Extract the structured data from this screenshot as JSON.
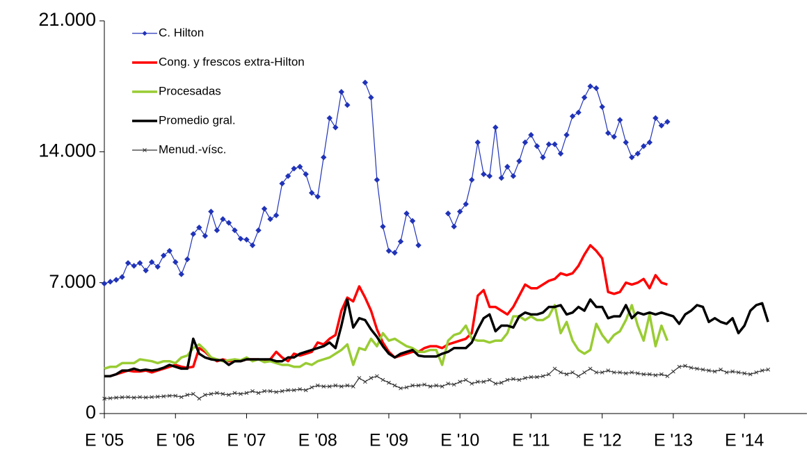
{
  "chart_data": {
    "type": "line",
    "categories": [
      "E '05",
      null,
      null,
      null,
      null,
      null,
      null,
      null,
      null,
      null,
      null,
      null,
      "E '06",
      null,
      null,
      null,
      null,
      null,
      null,
      null,
      null,
      null,
      null,
      null,
      "E '07",
      null,
      null,
      null,
      null,
      null,
      null,
      null,
      null,
      null,
      null,
      null,
      "E '08",
      null,
      null,
      null,
      null,
      null,
      null,
      null,
      null,
      null,
      null,
      null,
      "E '09",
      null,
      null,
      null,
      null,
      null,
      null,
      null,
      null,
      null,
      null,
      null,
      "E '10",
      null,
      null,
      null,
      null,
      null,
      null,
      null,
      null,
      null,
      null,
      null,
      "E '11",
      null,
      null,
      null,
      null,
      null,
      null,
      null,
      null,
      null,
      null,
      null,
      "E '12",
      null,
      null,
      null,
      null,
      null,
      null,
      null,
      null,
      null,
      null,
      null,
      "E '13",
      null,
      null,
      null,
      null,
      null,
      null,
      null,
      null,
      null,
      null,
      null,
      "E '14",
      null,
      null,
      null,
      null
    ],
    "ylim": [
      0,
      21000
    ],
    "yticks": [
      0,
      {
        "value": 7000,
        "label": "7.000"
      },
      {
        "value": 14000,
        "label": "14.000"
      },
      {
        "value": 21000,
        "label": "21.000"
      }
    ],
    "grid": false,
    "legend": "top-left",
    "series": [
      {
        "name": "C. Hilton",
        "color": "#2033b8",
        "marker": "diamond",
        "values": [
          6950,
          7050,
          7150,
          7300,
          8050,
          7900,
          8050,
          7650,
          8100,
          7850,
          8450,
          8700,
          8100,
          7450,
          8250,
          9600,
          9950,
          9500,
          10800,
          9800,
          10400,
          10200,
          9800,
          9350,
          9300,
          9000,
          9800,
          10950,
          10400,
          10600,
          12300,
          12700,
          13100,
          13200,
          12800,
          11800,
          11600,
          13700,
          15800,
          15300,
          17200,
          16500,
          null,
          null,
          17700,
          16900,
          12500,
          10000,
          8700,
          8600,
          9200,
          10700,
          10300,
          9000,
          null,
          null,
          null,
          null,
          10700,
          10000,
          10800,
          11200,
          12500,
          14500,
          12800,
          12700,
          15300,
          12600,
          13200,
          12700,
          13500,
          14500,
          14900,
          14300,
          13700,
          14400,
          14400,
          13900,
          14900,
          15900,
          16100,
          16900,
          17500,
          17400,
          16400,
          15000,
          14800,
          15700,
          14500,
          13700,
          13900,
          14300,
          14500,
          15800,
          15400,
          15600,
          null,
          null,
          null,
          null,
          null,
          null,
          null,
          null,
          null,
          null,
          null,
          null,
          null,
          null,
          null,
          null,
          null
        ]
      },
      {
        "name": "Cong. y frescos extra-Hilton",
        "color": "#ff0000",
        "values": [
          2000,
          2000,
          2100,
          2200,
          2300,
          2250,
          2250,
          2300,
          2200,
          2300,
          2400,
          2500,
          2600,
          2500,
          2450,
          2500,
          3500,
          3300,
          3000,
          2800,
          2900,
          2800,
          2850,
          2800,
          2900,
          2900,
          2900,
          2850,
          2900,
          3300,
          3000,
          2800,
          3200,
          3100,
          3200,
          3300,
          3800,
          3700,
          4000,
          4200,
          5500,
          6200,
          6000,
          6800,
          6200,
          5500,
          4500,
          3800,
          3300,
          3000,
          3100,
          3200,
          3300,
          3300,
          3500,
          3600,
          3600,
          3500,
          3700,
          3800,
          3900,
          4000,
          4300,
          6300,
          6600,
          5700,
          5700,
          5500,
          5300,
          5700,
          6300,
          6900,
          6700,
          6700,
          6900,
          7100,
          7200,
          7500,
          7400,
          7500,
          7900,
          8500,
          9000,
          8700,
          8300,
          6500,
          6400,
          6500,
          7000,
          6900,
          7000,
          7200,
          6700,
          7400,
          7000,
          6900,
          null,
          null,
          null,
          null,
          null,
          null,
          null,
          null,
          null,
          null,
          null,
          null,
          null,
          null,
          null,
          null,
          null
        ]
      },
      {
        "name": "Procesadas",
        "color": "#99cc33",
        "values": [
          2400,
          2500,
          2500,
          2700,
          2700,
          2700,
          2900,
          2850,
          2800,
          2700,
          2800,
          2800,
          2700,
          3000,
          3100,
          3500,
          3700,
          3400,
          3000,
          2900,
          2800,
          2850,
          2900,
          2850,
          3000,
          2800,
          2900,
          2750,
          2800,
          2700,
          2600,
          2600,
          2500,
          2500,
          2700,
          2600,
          2800,
          2900,
          3000,
          3200,
          3400,
          3700,
          2600,
          3500,
          3400,
          4000,
          3600,
          4300,
          3900,
          4000,
          3800,
          3600,
          3500,
          3300,
          3300,
          3400,
          3400,
          2600,
          3900,
          4200,
          4300,
          4700,
          4000,
          3900,
          3900,
          3800,
          3900,
          3900,
          4300,
          5200,
          5200,
          5000,
          5200,
          5000,
          5000,
          5200,
          5800,
          4300,
          4900,
          3900,
          3400,
          3200,
          3400,
          4800,
          4200,
          3800,
          4200,
          4400,
          5000,
          5800,
          4700,
          3900,
          5300,
          3600,
          4700,
          3900,
          null,
          null,
          null,
          null,
          null,
          null,
          null,
          null,
          null,
          null,
          null,
          null,
          null,
          null,
          null,
          null,
          null
        ]
      },
      {
        "name": "Promedio gral.",
        "color": "#000000",
        "values": [
          2000,
          2000,
          2100,
          2300,
          2300,
          2400,
          2300,
          2350,
          2300,
          2350,
          2450,
          2600,
          2500,
          2400,
          2400,
          4000,
          3200,
          3000,
          2900,
          2850,
          2850,
          2600,
          2800,
          2800,
          2900,
          2900,
          2900,
          2900,
          2900,
          2800,
          2800,
          3000,
          3000,
          3200,
          3300,
          3400,
          3500,
          3600,
          3800,
          3500,
          4700,
          6100,
          4600,
          5100,
          5000,
          4500,
          4100,
          3600,
          3200,
          3000,
          3200,
          3300,
          3400,
          3100,
          3050,
          3050,
          3050,
          3200,
          3300,
          3500,
          3500,
          3500,
          3800,
          4500,
          5100,
          5300,
          4400,
          4700,
          4700,
          4600,
          5200,
          5400,
          5300,
          5300,
          5400,
          5700,
          5700,
          5800,
          5300,
          5400,
          5700,
          5500,
          6100,
          5700,
          5700,
          5100,
          5200,
          5200,
          5800,
          5100,
          5400,
          5300,
          5400,
          5300,
          5400,
          5300,
          5200,
          4800,
          5300,
          5500,
          5800,
          5700,
          4900,
          5100,
          4900,
          4800,
          5100,
          4300,
          4700,
          5500,
          5800,
          5900,
          4900
        ]
      },
      {
        "name": "Menud.-vísc.",
        "color": "#333333",
        "marker": "x",
        "values": [
          800,
          820,
          850,
          870,
          880,
          850,
          880,
          860,
          880,
          900,
          920,
          950,
          950,
          880,
          1000,
          1050,
          800,
          1000,
          1050,
          1100,
          1050,
          1000,
          1100,
          1050,
          1100,
          1200,
          1100,
          1200,
          1200,
          1150,
          1200,
          1250,
          1250,
          1300,
          1250,
          1400,
          1500,
          1450,
          1450,
          1500,
          1450,
          1500,
          1450,
          1900,
          1700,
          1900,
          2000,
          1800,
          1650,
          1500,
          1350,
          1400,
          1500,
          1500,
          1550,
          1450,
          1500,
          1450,
          1600,
          1550,
          1700,
          1800,
          1600,
          1700,
          1700,
          1800,
          1600,
          1650,
          1800,
          1850,
          1800,
          1900,
          1950,
          1950,
          2000,
          2100,
          2400,
          2200,
          2100,
          2200,
          2000,
          2200,
          2400,
          2200,
          2200,
          2300,
          2200,
          2200,
          2150,
          2200,
          2150,
          2100,
          2100,
          2050,
          2100,
          2000,
          2250,
          2500,
          2550,
          2450,
          2400,
          2350,
          2300,
          2250,
          2350,
          2200,
          2250,
          2200,
          2150,
          2100,
          2200,
          2300,
          2350
        ]
      }
    ]
  }
}
